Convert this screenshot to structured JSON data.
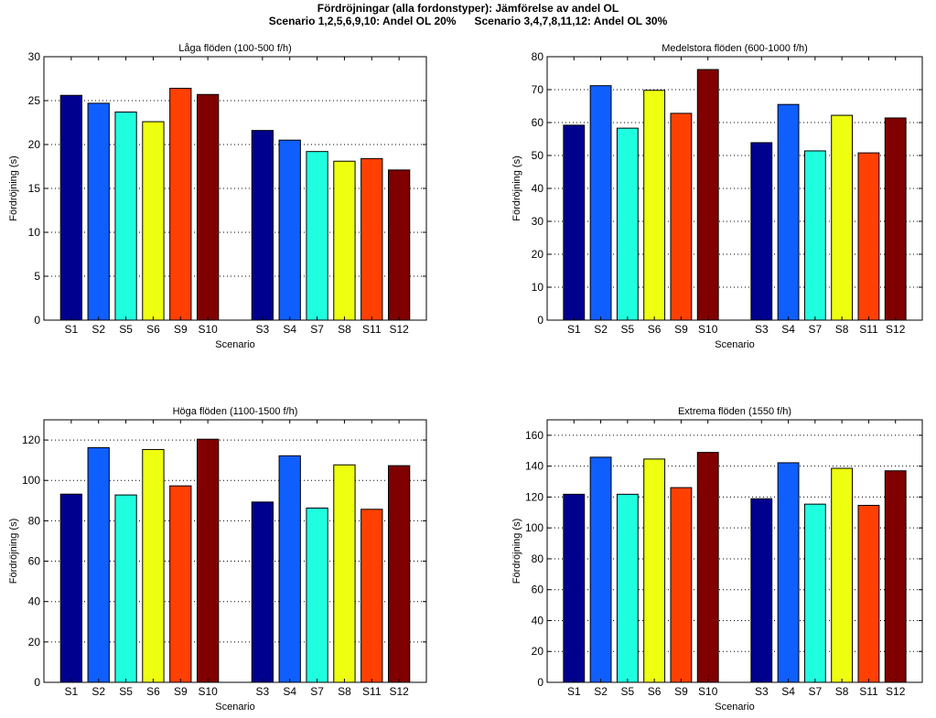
{
  "figure": {
    "title_line1": "Fördröjningar (alla fordonstyper): Jämförelse av andel OL",
    "title_line2": "Scenario 1,2,5,6,9,10: Andel OL 20%      Scenario 3,4,7,8,11,12: Andel OL 30%"
  },
  "chart_data": [
    {
      "type": "bar",
      "title": "Låga flöden (100-500 f/h)",
      "xlabel": "Scenario",
      "ylabel": "Fördröjning (s)",
      "categories": [
        "S1",
        "S2",
        "S5",
        "S6",
        "S9",
        "S10",
        "S3",
        "S4",
        "S7",
        "S8",
        "S11",
        "S12"
      ],
      "values": [
        25.6,
        24.7,
        23.7,
        22.6,
        26.4,
        25.7,
        21.6,
        20.5,
        19.2,
        18.1,
        18.4,
        17.1
      ],
      "ylim": [
        0,
        30
      ],
      "yticks": [
        0,
        5,
        10,
        15,
        20,
        25,
        30
      ],
      "grid": "horizontal-dotted"
    },
    {
      "type": "bar",
      "title": "Medelstora flöden (600-1000 f/h)",
      "xlabel": "Scenario",
      "ylabel": "Fördröjning (s)",
      "categories": [
        "S1",
        "S2",
        "S5",
        "S6",
        "S9",
        "S10",
        "S3",
        "S4",
        "S7",
        "S8",
        "S11",
        "S12"
      ],
      "values": [
        59.2,
        71.2,
        58.3,
        69.8,
        62.8,
        76.1,
        53.9,
        65.5,
        51.4,
        62.2,
        50.8,
        61.4
      ],
      "ylim": [
        0,
        80
      ],
      "yticks": [
        0,
        10,
        20,
        30,
        40,
        50,
        60,
        70,
        80
      ],
      "grid": "horizontal-dotted"
    },
    {
      "type": "bar",
      "title": "Höga flöden (1100-1500 f/h)",
      "xlabel": "Scenario",
      "ylabel": "Fördröjning (s)",
      "categories": [
        "S1",
        "S2",
        "S5",
        "S6",
        "S9",
        "S10",
        "S3",
        "S4",
        "S7",
        "S8",
        "S11",
        "S12"
      ],
      "values": [
        93.2,
        116.2,
        92.8,
        115.3,
        97.3,
        120.4,
        89.3,
        112.2,
        86.3,
        107.7,
        85.7,
        107.3
      ],
      "ylim": [
        0,
        130
      ],
      "yticks": [
        0,
        20,
        40,
        60,
        80,
        100,
        120
      ],
      "grid": "horizontal-dotted"
    },
    {
      "type": "bar",
      "title": "Extrema flöden (1550 f/h)",
      "xlabel": "Scenario",
      "ylabel": "Fördröjning (s)",
      "categories": [
        "S1",
        "S2",
        "S5",
        "S6",
        "S9",
        "S10",
        "S3",
        "S4",
        "S7",
        "S8",
        "S11",
        "S12"
      ],
      "values": [
        121.8,
        145.8,
        121.8,
        144.6,
        126.1,
        148.9,
        118.9,
        142.2,
        115.4,
        138.6,
        114.6,
        137.0
      ],
      "ylim": [
        0,
        170
      ],
      "yticks": [
        0,
        20,
        40,
        60,
        80,
        100,
        120,
        140,
        160
      ],
      "grid": "horizontal-dotted"
    }
  ],
  "colors": {
    "bars": [
      "#00008f",
      "#0f5fff",
      "#1fffdf",
      "#efff10",
      "#ff4000",
      "#800000"
    ],
    "grid": "#000000",
    "axes": "#000000"
  }
}
